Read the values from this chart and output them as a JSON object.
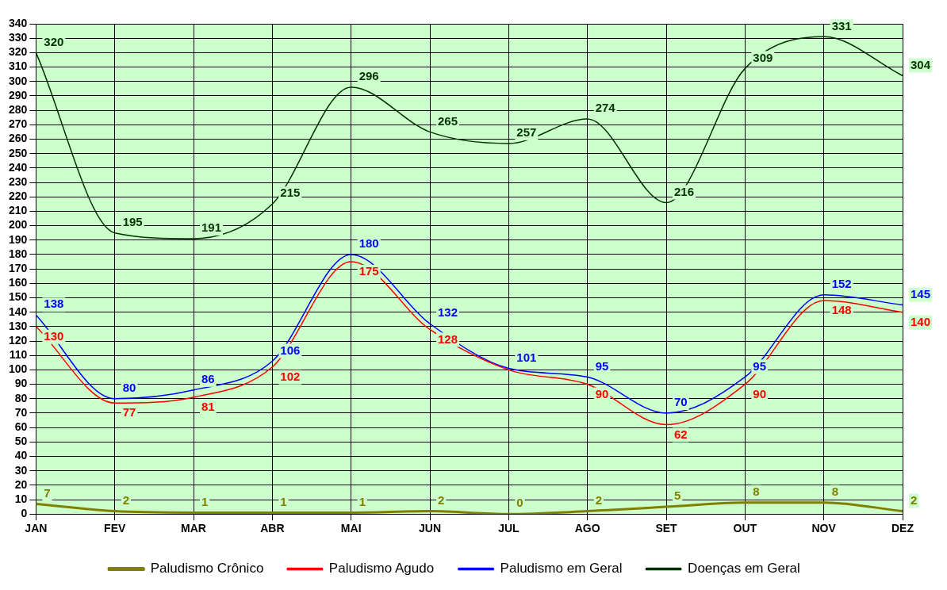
{
  "chart_data": {
    "type": "line",
    "categories": [
      "JAN",
      "FEV",
      "MAR",
      "ABR",
      "MAI",
      "JUN",
      "JUL",
      "AGO",
      "SET",
      "OUT",
      "NOV",
      "DEZ"
    ],
    "ylim": [
      0,
      340
    ],
    "yticks": [
      0,
      10,
      20,
      30,
      40,
      50,
      60,
      70,
      80,
      90,
      100,
      110,
      120,
      130,
      140,
      150,
      160,
      170,
      180,
      190,
      200,
      210,
      220,
      230,
      240,
      250,
      260,
      270,
      280,
      290,
      300,
      310,
      320,
      330,
      340
    ],
    "grid": true,
    "legend": "bottom",
    "marker": "none",
    "line_style": "solid",
    "data_labels": true,
    "series": [
      {
        "name": "Paludismo Crônico",
        "color": "#808000",
        "values": [
          7,
          2,
          1,
          1,
          1,
          2,
          0,
          2,
          5,
          8,
          8,
          2
        ]
      },
      {
        "name": "Paludismo Agudo",
        "color": "#ff0000",
        "values": [
          130,
          77,
          81,
          102,
          175,
          128,
          100,
          90,
          62,
          90,
          148,
          140
        ],
        "value_labels": [
          "130",
          "77",
          "81",
          "102",
          "175",
          "128",
          null,
          "90",
          "62",
          "90",
          "148",
          "140"
        ]
      },
      {
        "name": "Paludismo em Geral",
        "color": "#0000ff",
        "values": [
          138,
          80,
          86,
          106,
          180,
          132,
          101,
          95,
          70,
          95,
          152,
          145
        ]
      },
      {
        "name": "Doenças em Geral",
        "color": "#003300",
        "values": [
          320,
          195,
          191,
          215,
          296,
          265,
          257,
          274,
          216,
          309,
          331,
          304
        ]
      }
    ]
  }
}
